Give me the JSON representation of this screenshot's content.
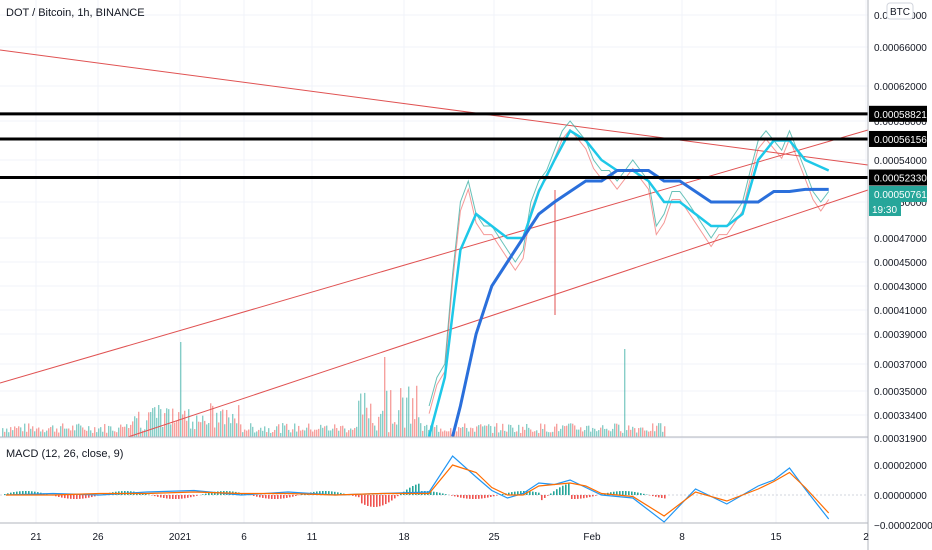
{
  "header": {
    "symbol_title": "DOT / Bitcoin, 1h, BINANCE",
    "currency_badge": "BTC"
  },
  "colors": {
    "background": "#ffffff",
    "grid": "#f0f3fa",
    "axis_border": "#b2b5be",
    "trendline": "#e05252",
    "sma_fast": "#1ec8e8",
    "sma_mid": "#36c2f0",
    "sma_slow": "#2a6fdb",
    "volume_up": "#26a69a",
    "volume_down": "#ef5350",
    "price_tag_bg": "#26a69a",
    "level_line": "#000000",
    "macd_line": "#2196f3",
    "signal_line": "#ff6d00"
  },
  "price_axis": {
    "tick_labels": [
      "0.00070000",
      "0.00066000",
      "0.00062000",
      "0.00058000",
      "0.00054000",
      "0.00050000",
      "0.00047000",
      "0.00045000",
      "0.00043000",
      "0.00041000",
      "0.00039000",
      "0.00037000",
      "0.00035000",
      "0.00033400",
      "0.00031900"
    ],
    "level_tags": [
      "0.00058821",
      "0.00056156",
      "0.00052330"
    ],
    "last_price": "0.00050761",
    "countdown": "19:30"
  },
  "time_axis": {
    "labels": [
      "21",
      "26",
      "2021",
      "6",
      "11",
      "18",
      "25",
      "Feb",
      "8",
      "15",
      "2"
    ]
  },
  "macd": {
    "title": "MACD (12, 26, close, 9)",
    "tick_labels": [
      "0.00002000",
      "0.00000000",
      "−0.00002000"
    ]
  },
  "chart_data": {
    "type": "line",
    "title": "DOT / Bitcoin, 1h, BINANCE",
    "x_unit": "day index (0 = Dec 18, 2020)",
    "price_series": {
      "name": "price",
      "x": [
        27,
        27.5,
        28,
        28.5,
        29,
        29.5,
        30,
        30.5,
        31,
        31.5,
        32,
        32.5,
        33,
        33.5,
        34,
        34.5,
        35,
        35.5,
        36,
        36.5,
        37,
        37.5,
        38,
        38.5,
        39,
        39.5,
        40,
        40.5,
        41,
        41.5,
        42,
        42.5,
        43,
        43.5,
        44,
        44.5,
        45,
        45.5,
        46,
        46.5,
        47,
        47.5,
        48,
        48.5,
        49,
        49.5,
        50,
        50.5,
        51,
        51.5,
        52,
        52.5
      ],
      "y": [
        0.00034,
        0.00036,
        0.00037,
        0.00044,
        0.0005,
        0.00052,
        0.00049,
        0.00048,
        0.00048,
        0.00047,
        0.00046,
        0.00045,
        0.00046,
        0.0005,
        0.00052,
        0.00053,
        0.00055,
        0.00057,
        0.00058,
        0.00057,
        0.00056,
        0.00054,
        0.00053,
        0.00053,
        0.00052,
        0.00053,
        0.00054,
        0.00053,
        0.00052,
        0.00048,
        0.00049,
        0.00051,
        0.00051,
        0.0005,
        0.00049,
        0.00048,
        0.00047,
        0.00048,
        0.00048,
        0.00049,
        0.0005,
        0.00053,
        0.00056,
        0.00057,
        0.00056,
        0.00055,
        0.00057,
        0.00055,
        0.00053,
        0.00051,
        0.0005,
        0.00051
      ]
    },
    "sma_fast": {
      "x": [
        27,
        28,
        29,
        30,
        31,
        32,
        33,
        34,
        35,
        36,
        37,
        38,
        39,
        40,
        41,
        42,
        43,
        44,
        45,
        46,
        47,
        48,
        49,
        50,
        51,
        52.5
      ],
      "y": [
        0.00032,
        0.00036,
        0.00046,
        0.00049,
        0.00048,
        0.00047,
        0.00047,
        0.00051,
        0.00054,
        0.00057,
        0.00056,
        0.00054,
        0.00053,
        0.00053,
        0.00052,
        0.0005,
        0.0005,
        0.00049,
        0.00048,
        0.00048,
        0.00049,
        0.00054,
        0.00056,
        0.00056,
        0.00054,
        0.00053
      ]
    },
    "sma_slow": {
      "x": [
        28.5,
        29,
        30,
        31,
        32,
        33,
        34,
        35,
        36,
        37,
        38,
        39,
        40,
        41,
        42,
        43,
        44,
        45,
        46,
        47,
        48,
        49,
        50,
        51,
        52.5
      ],
      "y": [
        0.00032,
        0.00034,
        0.00039,
        0.00043,
        0.00045,
        0.00047,
        0.00049,
        0.0005,
        0.00051,
        0.00052,
        0.00052,
        0.00053,
        0.00053,
        0.00053,
        0.00052,
        0.00052,
        0.00051,
        0.0005,
        0.0005,
        0.0005,
        0.0005,
        0.00051,
        0.00051,
        0.000512,
        0.000512
      ]
    },
    "horizontal_levels": [
      0.00058821,
      0.00056156,
      0.0005233
    ],
    "macd_line": {
      "x": [
        0,
        3,
        6,
        9,
        12,
        15,
        18,
        21,
        24,
        27,
        28.5,
        30,
        31,
        32,
        33,
        34,
        35,
        36,
        37,
        38,
        40,
        42,
        44,
        46,
        48,
        49,
        50,
        51,
        52.5
      ],
      "y": [
        0,
        1e-06,
        0,
        2e-06,
        3e-06,
        0,
        2e-06,
        0,
        1e-06,
        2e-06,
        2.6e-05,
        1.2e-05,
        3e-06,
        -2e-06,
        1e-06,
        8e-06,
        7e-06,
        1e-05,
        5e-06,
        0,
        -2e-06,
        -1.8e-05,
        4e-06,
        -6e-06,
        6e-06,
        1e-05,
        1.8e-05,
        4e-06,
        -1.6e-05
      ]
    },
    "signal_line": {
      "x": [
        0,
        3,
        6,
        9,
        12,
        15,
        18,
        21,
        24,
        27,
        28.5,
        30,
        31,
        32,
        33,
        34,
        35,
        36,
        37,
        38,
        40,
        42,
        44,
        46,
        48,
        49,
        50,
        51,
        52.5
      ],
      "y": [
        0,
        0,
        1e-06,
        1e-06,
        2e-06,
        1e-06,
        1e-06,
        0,
        1e-06,
        1e-06,
        2e-05,
        1.5e-05,
        5e-06,
        0,
        0,
        6e-06,
        7e-06,
        8e-06,
        6e-06,
        1e-06,
        -1e-06,
        -1.4e-05,
        2e-06,
        -4e-06,
        4e-06,
        9e-06,
        1.5e-05,
        5e-06,
        -1.2e-05
      ]
    },
    "ylim": [
      0.000319,
      0.00071
    ],
    "macd_ylim": [
      -2.2e-05,
      2.6e-05
    ],
    "grid": true
  }
}
